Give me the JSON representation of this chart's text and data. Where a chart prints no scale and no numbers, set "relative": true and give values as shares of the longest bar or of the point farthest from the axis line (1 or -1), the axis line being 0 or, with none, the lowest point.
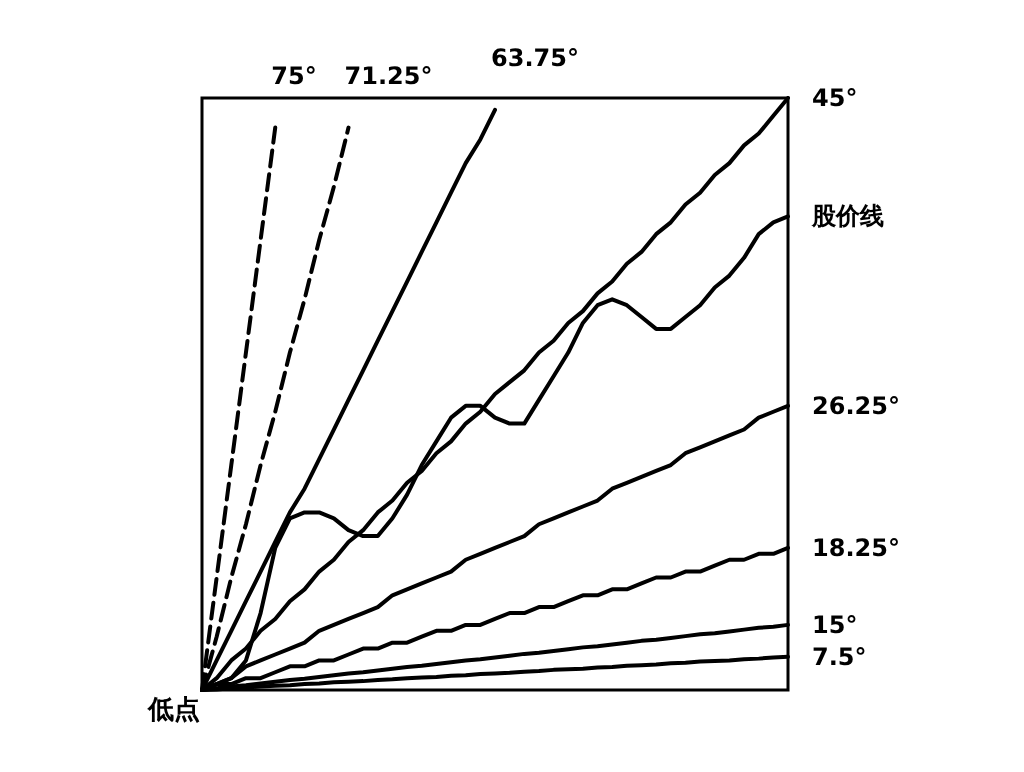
{
  "chart_data": {
    "type": "line",
    "relative": true,
    "marker": "none",
    "categories": [
      null,
      null,
      null,
      null,
      null,
      null,
      null,
      null,
      null,
      null,
      null,
      null,
      null,
      null,
      null,
      null,
      null,
      null,
      null,
      null,
      null,
      null,
      null,
      null,
      null,
      null,
      null,
      null,
      null,
      null,
      null,
      null,
      null,
      null,
      null,
      null,
      null,
      null,
      null,
      null,
      null
    ],
    "annotations": [
      "低点"
    ],
    "series": [
      {
        "name": "75°",
        "color": "#000000",
        "line_style": "dashed",
        "values": [
          0,
          0.19,
          0.38,
          0.57,
          0.76,
          0.95,
          null,
          null,
          null,
          null,
          null,
          null,
          null,
          null,
          null,
          null,
          null,
          null,
          null,
          null,
          null,
          null,
          null,
          null,
          null,
          null,
          null,
          null,
          null,
          null,
          null,
          null,
          null,
          null,
          null,
          null,
          null,
          null,
          null,
          null,
          null
        ]
      },
      {
        "name": "71.25°",
        "color": "#000000",
        "line_style": "dashed",
        "values": [
          0,
          0.09,
          0.19,
          0.28,
          0.38,
          0.47,
          0.57,
          0.66,
          0.76,
          0.85,
          0.95,
          null,
          null,
          null,
          null,
          null,
          null,
          null,
          null,
          null,
          null,
          null,
          null,
          null,
          null,
          null,
          null,
          null,
          null,
          null,
          null,
          null,
          null,
          null,
          null,
          null,
          null,
          null,
          null,
          null,
          null
        ]
      },
      {
        "name": "63.75°",
        "color": "#000000",
        "line_style": "solid",
        "values": [
          0,
          0.05,
          0.1,
          0.15,
          0.2,
          0.25,
          0.3,
          0.34,
          0.39,
          0.44,
          0.49,
          0.54,
          0.59,
          0.64,
          0.69,
          0.74,
          0.79,
          0.84,
          0.89,
          0.93,
          0.98,
          null,
          null,
          null,
          null,
          null,
          null,
          null,
          null,
          null,
          null,
          null,
          null,
          null,
          null,
          null,
          null,
          null,
          null,
          null,
          null
        ]
      },
      {
        "name": "45°",
        "color": "#000000",
        "line_style": "solid",
        "values": [
          0,
          0.02,
          0.05,
          0.07,
          0.1,
          0.12,
          0.15,
          0.17,
          0.2,
          0.22,
          0.25,
          0.27,
          0.3,
          0.32,
          0.35,
          0.37,
          0.4,
          0.42,
          0.45,
          0.47,
          0.5,
          0.52,
          0.54,
          0.57,
          0.59,
          0.62,
          0.64,
          0.67,
          0.69,
          0.72,
          0.74,
          0.77,
          0.79,
          0.82,
          0.84,
          0.87,
          0.89,
          0.92,
          0.94,
          0.97,
          1
        ]
      },
      {
        "name": "股价线",
        "color": "#000000",
        "line_style": "solid",
        "values": [
          0,
          0.01,
          0.02,
          0.05,
          0.13,
          0.24,
          0.29,
          0.3,
          0.3,
          0.29,
          0.27,
          0.26,
          0.26,
          0.29,
          0.33,
          0.38,
          0.42,
          0.46,
          0.48,
          0.48,
          0.46,
          0.45,
          0.45,
          0.49,
          0.53,
          0.57,
          0.62,
          0.65,
          0.66,
          0.65,
          0.63,
          0.61,
          0.61,
          0.63,
          0.65,
          0.68,
          0.7,
          0.73,
          0.77,
          0.79,
          0.8
        ]
      },
      {
        "name": "26.25°",
        "color": "#000000",
        "line_style": "solid",
        "values": [
          0,
          0.01,
          0.02,
          0.04,
          0.05,
          0.06,
          0.07,
          0.08,
          0.1,
          0.11,
          0.12,
          0.13,
          0.14,
          0.16,
          0.17,
          0.18,
          0.19,
          0.2,
          0.22,
          0.23,
          0.24,
          0.25,
          0.26,
          0.28,
          0.29,
          0.3,
          0.31,
          0.32,
          0.34,
          0.35,
          0.36,
          0.37,
          0.38,
          0.4,
          0.41,
          0.42,
          0.43,
          0.44,
          0.46,
          0.47,
          0.48
        ]
      },
      {
        "name": "18.25°",
        "color": "#000000",
        "line_style": "solid",
        "values": [
          0,
          0.01,
          0.01,
          0.02,
          0.02,
          0.03,
          0.04,
          0.04,
          0.05,
          0.05,
          0.06,
          0.07,
          0.07,
          0.08,
          0.08,
          0.09,
          0.1,
          0.1,
          0.11,
          0.11,
          0.12,
          0.13,
          0.13,
          0.14,
          0.14,
          0.15,
          0.16,
          0.16,
          0.17,
          0.17,
          0.18,
          0.19,
          0.19,
          0.2,
          0.2,
          0.21,
          0.22,
          0.22,
          0.23,
          0.23,
          0.24
        ]
      },
      {
        "name": "15°",
        "color": "#000000",
        "line_style": "solid",
        "values": [
          0,
          0.003,
          0.006,
          0.008,
          0.011,
          0.014,
          0.017,
          0.019,
          0.022,
          0.025,
          0.028,
          0.03,
          0.033,
          0.036,
          0.039,
          0.041,
          0.044,
          0.047,
          0.05,
          0.052,
          0.055,
          0.058,
          0.061,
          0.063,
          0.066,
          0.069,
          0.072,
          0.074,
          0.077,
          0.08,
          0.083,
          0.085,
          0.088,
          0.091,
          0.094,
          0.096,
          0.099,
          0.102,
          0.105,
          0.107,
          0.11
        ]
      },
      {
        "name": "7.5°",
        "color": "#000000",
        "line_style": "solid",
        "values": [
          0,
          0.001,
          0.003,
          0.004,
          0.006,
          0.007,
          0.008,
          0.01,
          0.011,
          0.013,
          0.014,
          0.015,
          0.017,
          0.018,
          0.02,
          0.021,
          0.022,
          0.024,
          0.025,
          0.027,
          0.028,
          0.029,
          0.031,
          0.032,
          0.034,
          0.035,
          0.036,
          0.038,
          0.039,
          0.041,
          0.042,
          0.043,
          0.045,
          0.046,
          0.048,
          0.049,
          0.05,
          0.052,
          0.053,
          0.055,
          0.056
        ]
      }
    ]
  }
}
